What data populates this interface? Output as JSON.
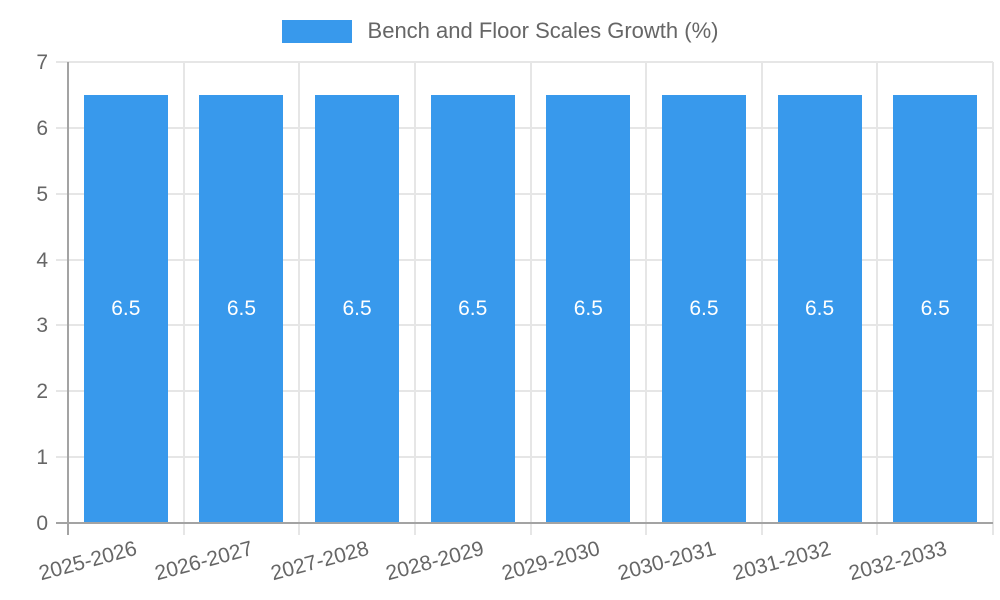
{
  "chart_data": {
    "type": "bar",
    "title": "Bench and Floor Scales Growth (%)",
    "legend": {
      "position": "top",
      "label": "Bench and Floor Scales Growth (%)"
    },
    "categories": [
      "2025-2026",
      "2026-2027",
      "2027-2028",
      "2028-2029",
      "2029-2030",
      "2030-2031",
      "2031-2032",
      "2032-2033"
    ],
    "values": [
      6.5,
      6.5,
      6.5,
      6.5,
      6.5,
      6.5,
      6.5,
      6.5
    ],
    "bar_value_labels": [
      "6.5",
      "6.5",
      "6.5",
      "6.5",
      "6.5",
      "6.5",
      "6.5",
      "6.5"
    ],
    "xlabel": "",
    "ylabel": "",
    "ylim": [
      0,
      7
    ],
    "yticks": [
      0,
      1,
      2,
      3,
      4,
      5,
      6,
      7
    ],
    "grid": true,
    "colors": {
      "bar": "#3899EC",
      "tick_text": "#666666",
      "legend_text": "#666666",
      "gridline": "#e6e6e6",
      "axis_line": "#a3a3a3",
      "bar_label_text": "#ffffff",
      "background": "#ffffff"
    }
  }
}
